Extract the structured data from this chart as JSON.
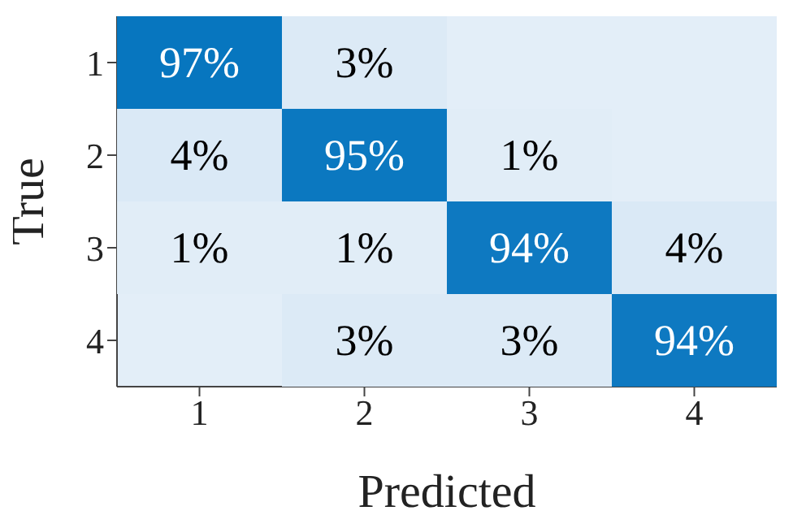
{
  "chart_data": {
    "type": "heatmap",
    "xlabel": "Predicted",
    "ylabel": "True",
    "categories": [
      "1",
      "2",
      "3",
      "4"
    ],
    "y_categories": [
      "1",
      "2",
      "3",
      "4"
    ],
    "cells": [
      [
        97,
        3,
        null,
        null
      ],
      [
        4,
        95,
        1,
        null
      ],
      [
        1,
        1,
        94,
        4
      ],
      [
        null,
        3,
        3,
        94
      ]
    ],
    "cell_labels": [
      [
        "97%",
        "3%",
        null,
        null
      ],
      [
        "4%",
        "95%",
        "1%",
        null
      ],
      [
        "1%",
        "1%",
        "94%",
        "4%"
      ],
      [
        null,
        "3%",
        "3%",
        "94%"
      ]
    ]
  }
}
